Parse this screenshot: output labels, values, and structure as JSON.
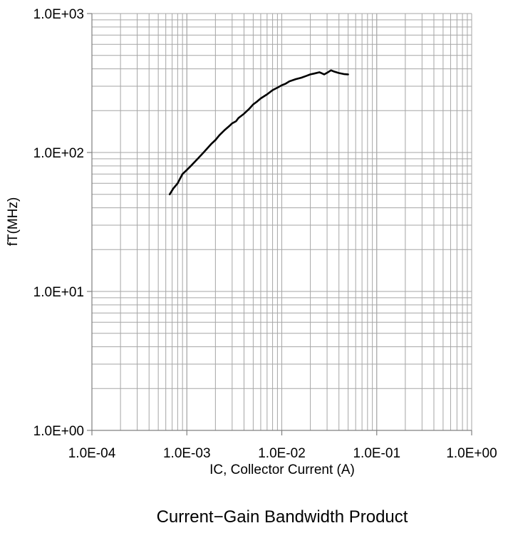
{
  "chart_data": {
    "type": "line",
    "title": "Current−Gain Bandwidth Product",
    "xlabel": "IC, Collector Current (A)",
    "ylabel": "fT(MHz)",
    "x_scale": "log",
    "y_scale": "log",
    "xlim": [
      0.0001,
      1
    ],
    "ylim": [
      1,
      1000
    ],
    "x_tick_values": [
      0.0001,
      0.001,
      0.01,
      0.1,
      1
    ],
    "x_tick_labels": [
      "1.0E-04",
      "1.0E-03",
      "1.0E-02",
      "1.0E-01",
      "1.0E+00"
    ],
    "y_tick_values": [
      1,
      10,
      100,
      1000
    ],
    "y_tick_labels": [
      "1.0E+00",
      "1.0E+01",
      "1.0E+02",
      "1.0E+03"
    ],
    "grid": true,
    "line_color": "#000000",
    "grid_color": "#a6a6a6",
    "series": [
      {
        "x": [
          0.00066,
          0.00072,
          0.0008,
          0.00085,
          0.0009,
          0.001,
          0.0011,
          0.0013,
          0.0015,
          0.0018,
          0.002,
          0.0022,
          0.0025,
          0.0028,
          0.003,
          0.0033,
          0.0035,
          0.004,
          0.0045,
          0.005,
          0.0055,
          0.006,
          0.007,
          0.008,
          0.009,
          0.01,
          0.011,
          0.012,
          0.014,
          0.016,
          0.018,
          0.02,
          0.022,
          0.025,
          0.028,
          0.03,
          0.033,
          0.035,
          0.04,
          0.045,
          0.05
        ],
        "y": [
          50,
          55,
          60,
          65,
          70,
          75,
          80,
          90,
          100,
          115,
          123,
          133,
          145,
          155,
          162,
          168,
          177,
          190,
          205,
          222,
          233,
          245,
          262,
          281,
          293,
          305,
          313,
          325,
          337,
          345,
          355,
          365,
          370,
          378,
          365,
          375,
          390,
          384,
          373,
          367,
          365
        ]
      }
    ]
  }
}
